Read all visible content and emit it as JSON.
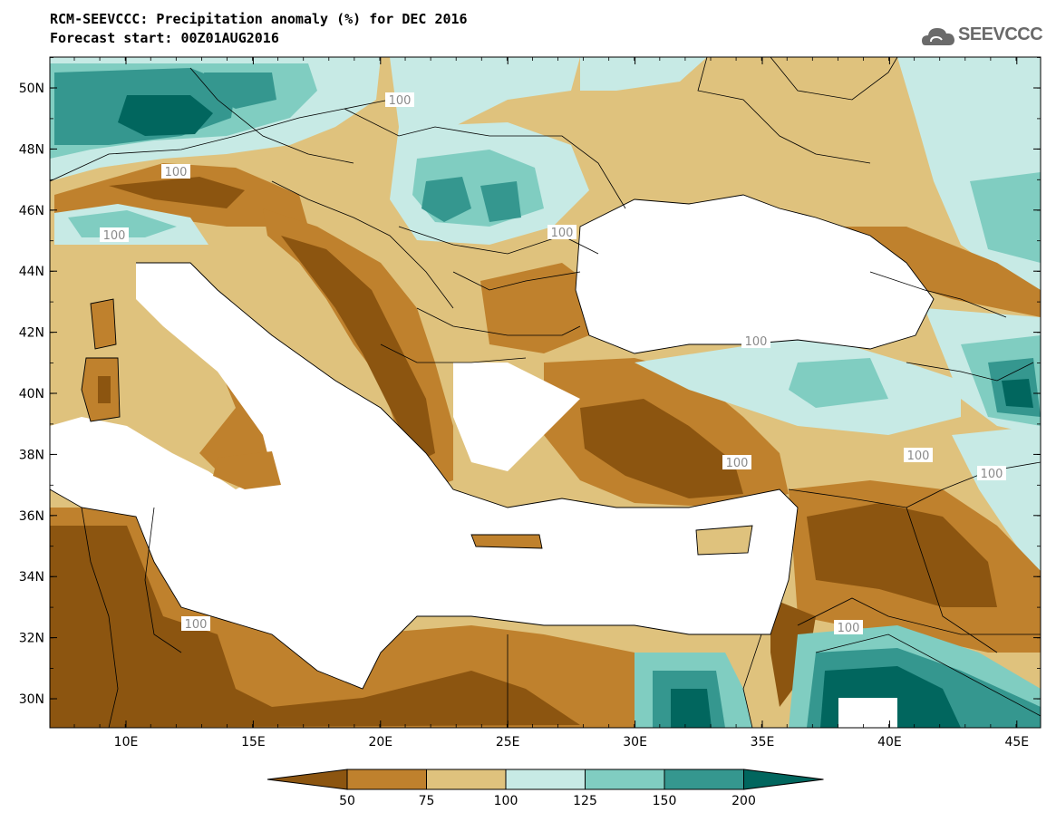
{
  "header": {
    "title": "RCM-SEEVCCC: Precipitation anomaly (%) for DEC 2016",
    "subtitle": "Forecast start: 00Z01AUG2016"
  },
  "logo": {
    "text": "SEEVCCC",
    "icon": "cloud-icon"
  },
  "map": {
    "lat_ticks": [
      "50N",
      "48N",
      "46N",
      "44N",
      "42N",
      "40N",
      "38N",
      "36N",
      "34N",
      "32N",
      "30N"
    ],
    "lon_ticks": [
      "10E",
      "15E",
      "20E",
      "25E",
      "30E",
      "35E",
      "40E",
      "45E"
    ],
    "contour_labels": [
      "100",
      "100",
      "100",
      "100",
      "100",
      "100",
      "100",
      "100",
      "100",
      "100"
    ]
  },
  "colorbar": {
    "levels": [
      "50",
      "75",
      "100",
      "125",
      "150",
      "200"
    ],
    "colors": [
      "#8c5510",
      "#bf812d",
      "#dfc27d",
      "#c7eae5",
      "#80cdc1",
      "#35978f",
      "#01665e"
    ]
  }
}
